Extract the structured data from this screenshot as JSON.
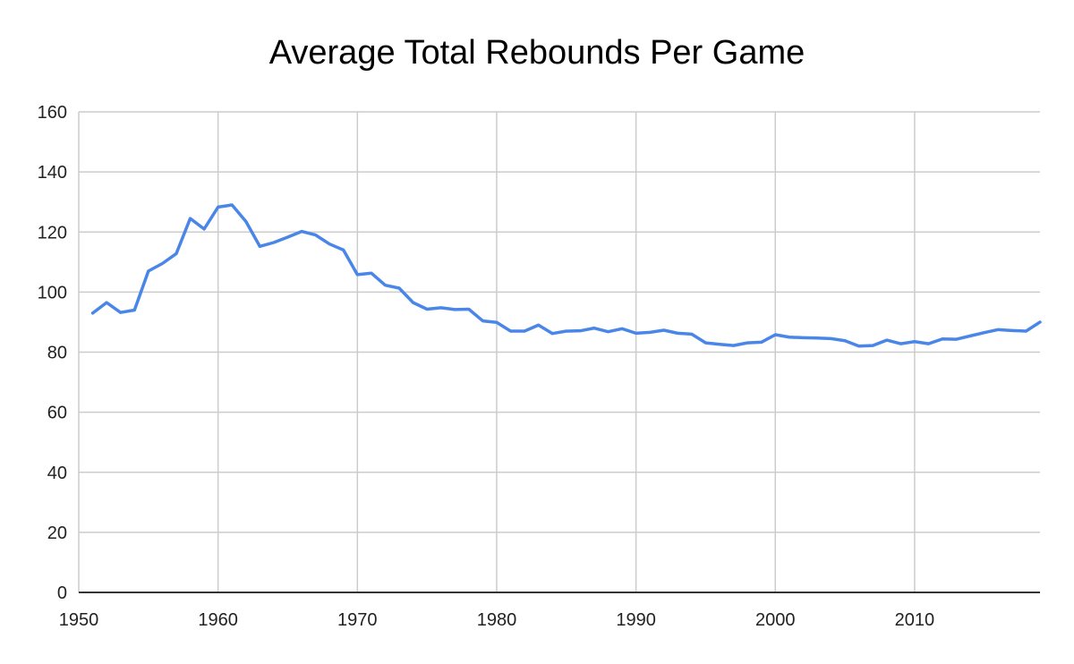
{
  "chart_data": {
    "type": "line",
    "title": "Average Total Rebounds Per Game",
    "xlabel": "",
    "ylabel": "",
    "xlim": [
      1950,
      2019
    ],
    "ylim": [
      0,
      160
    ],
    "x_ticks": [
      1950,
      1960,
      1970,
      1980,
      1990,
      2000,
      2010
    ],
    "y_ticks": [
      0,
      20,
      40,
      60,
      80,
      100,
      120,
      140,
      160
    ],
    "grid": true,
    "legend": "none",
    "series": [
      {
        "color": "#4a86e8",
        "x": [
          1951,
          1952,
          1953,
          1954,
          1955,
          1956,
          1957,
          1958,
          1959,
          1960,
          1961,
          1962,
          1963,
          1964,
          1965,
          1966,
          1967,
          1968,
          1969,
          1970,
          1971,
          1972,
          1973,
          1974,
          1975,
          1976,
          1977,
          1978,
          1979,
          1980,
          1981,
          1982,
          1983,
          1984,
          1985,
          1986,
          1987,
          1988,
          1989,
          1990,
          1991,
          1992,
          1993,
          1994,
          1995,
          1996,
          1997,
          1998,
          1999,
          2000,
          2001,
          2002,
          2003,
          2004,
          2005,
          2006,
          2007,
          2008,
          2009,
          2010,
          2011,
          2012,
          2013,
          2014,
          2015,
          2016,
          2017,
          2018,
          2019
        ],
        "y": [
          93,
          96.5,
          93.2,
          94,
          107,
          109.5,
          112.8,
          124.5,
          121,
          128.3,
          129,
          123.5,
          115.2,
          116.5,
          118.3,
          120.2,
          119,
          116,
          114,
          105.8,
          106.3,
          102.3,
          101.3,
          96.5,
          94.3,
          94.8,
          94.2,
          94.3,
          90.4,
          89.9,
          87,
          87,
          89,
          86.2,
          87,
          87.1,
          88,
          86.8,
          87.8,
          86.3,
          86.6,
          87.3,
          86.3,
          86,
          83.1,
          82.6,
          82.2,
          83.1,
          83.3,
          85.8,
          85,
          84.8,
          84.7,
          84.5,
          83.8,
          82,
          82.2,
          84,
          82.8,
          83.5,
          82.8,
          84.4,
          84.3,
          85.4,
          86.5,
          87.5,
          87.2,
          87,
          90
        ]
      }
    ]
  }
}
